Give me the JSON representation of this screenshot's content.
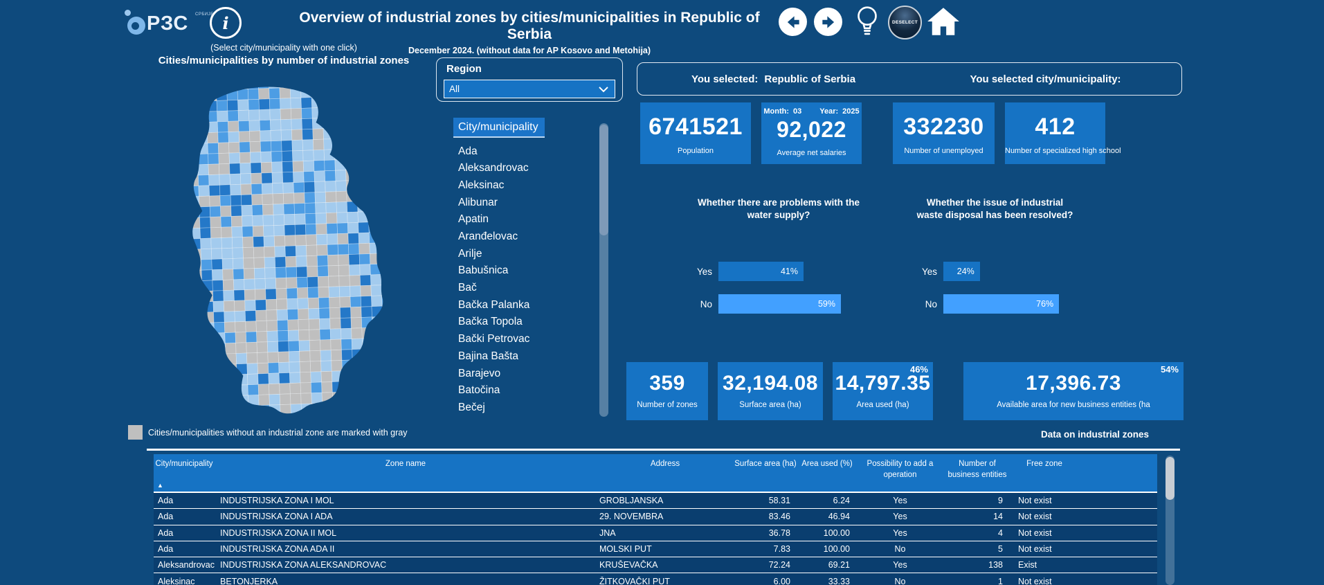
{
  "header": {
    "logo_text": "РЗС",
    "logo_sub": "СРБИЈЕ",
    "title": "Overview of industrial zones by cities/municipalities in Republic of Serbia",
    "subtitle": "December 2024. (without data for AP Kosovo and Metohija)",
    "deselect_label": "DESELECT"
  },
  "icons": {
    "info": "i",
    "sort_asc": "▲"
  },
  "map_panel": {
    "hint": "(Select city/municipality with one click)",
    "title": "Cities/municipalities by number of industrial zones",
    "legend": "Cities/municipalities without an industrial zone are marked with gray"
  },
  "region_filter": {
    "label": "Region",
    "value": "All"
  },
  "city_list": {
    "header": "City/municipality",
    "items": [
      "Ada",
      "Aleksandrovac",
      "Aleksinac",
      "Alibunar",
      "Apatin",
      "Aranđelovac",
      "Arilje",
      "Babušnica",
      "Bač",
      "Bačka Palanka",
      "Bačka Topola",
      "Bački Petrovac",
      "Bajina Bašta",
      "Barajevo",
      "Batočina",
      "Bečej"
    ]
  },
  "selection": {
    "left_label": "You selected:",
    "left_value": "Republic of Serbia",
    "right_label": "You selected city/municipality:"
  },
  "stat_cards": [
    {
      "value": "6741521",
      "label": "Population"
    },
    {
      "value": "92,022",
      "label": "Average net salaries",
      "month_label": "Month:",
      "month": "03",
      "year_label": "Year:",
      "year": "2025"
    },
    {
      "value": "332230",
      "label": "Number of unemployed"
    },
    {
      "value": "412",
      "label": "Number of specialized high school"
    }
  ],
  "chart_data": [
    {
      "type": "bar",
      "title": "Whether there are problems with the water supply?",
      "categories": [
        "Yes",
        "No"
      ],
      "values": [
        41,
        59
      ],
      "unit": "%",
      "orientation": "horizontal",
      "xlim": [
        0,
        60
      ]
    },
    {
      "type": "bar",
      "title": "Whether the issue of industrial waste disposal has been resolved?",
      "categories": [
        "Yes",
        "No"
      ],
      "values": [
        24,
        76
      ],
      "unit": "%",
      "orientation": "horizontal",
      "xlim": [
        0,
        80
      ]
    }
  ],
  "zone_cards": [
    {
      "value": "359",
      "label": "Number of zones"
    },
    {
      "value": "32,194.08",
      "label": "Surface area (ha)"
    },
    {
      "value": "14,797.35",
      "label": "Area used (ha)",
      "badge": "46%"
    },
    {
      "value": "17,396.73",
      "label": "Available area for new business entities (ha",
      "badge": "54%"
    }
  ],
  "table": {
    "title": "Data on industrial zones",
    "sort_icon": "▲",
    "columns": [
      "City/municipality",
      "Zone name",
      "Address",
      "Surface area (ha)",
      "Area used (%)",
      "Possibility to add a operation",
      "Number of business entities",
      "Free zone"
    ],
    "rows": [
      [
        "Ada",
        "INDUSTRIJSKA ZONA I MOL",
        "GROBLJANSKA",
        "58.31",
        "6.24",
        "Yes",
        "9",
        "Not exist"
      ],
      [
        "Ada",
        "INDUSTRIJSKA ZONA I ADA",
        "29. NOVEMBRA",
        "83.46",
        "46.94",
        "Yes",
        "14",
        "Not exist"
      ],
      [
        "Ada",
        "INDUSTRIJSKA ZONA II MOL",
        "JNA",
        "36.78",
        "100.00",
        "Yes",
        "4",
        "Not exist"
      ],
      [
        "Ada",
        "INDUSTRIJSKA ZONA ADA II",
        "MOLSKI PUT",
        "7.83",
        "100.00",
        "No",
        "5",
        "Not exist"
      ],
      [
        "Aleksandrovac",
        "INDUSTRIJSKA ZONA ALEKSANDROVAC",
        "KRUŠEVAČKA",
        "72.24",
        "69.21",
        "Yes",
        "138",
        "Exist"
      ],
      [
        "Aleksinac",
        "BETONJERKA",
        "ŽITKOVAČKI PUT",
        "6.00",
        "33.33",
        "No",
        "1",
        "Not exist"
      ]
    ]
  },
  "colors": {
    "background": "#0E4A7D",
    "accent": "#1673C4",
    "accent_light": "#42A0FF",
    "table_header": "#1673C4",
    "table_row": "#0A3E6F",
    "no_zone_gray": "#BFBFBF",
    "map_palette": [
      "#A3CBEE",
      "#4D9DE4",
      "#2478C8"
    ]
  }
}
